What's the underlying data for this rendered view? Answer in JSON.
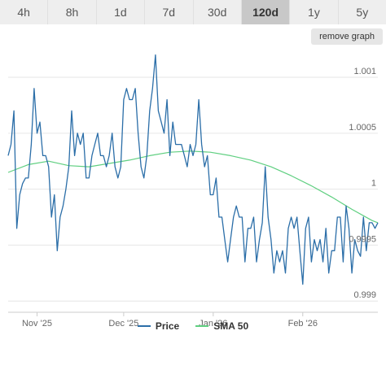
{
  "range_selector": {
    "buttons": [
      "4h",
      "8h",
      "1d",
      "7d",
      "30d",
      "120d",
      "1y",
      "5y"
    ],
    "active": "120d"
  },
  "remove_graph_label": "remove graph",
  "colors": {
    "price": "#2b6ea8",
    "sma": "#5fcf80",
    "grid": "#e6e6e6",
    "axis": "#cccccc"
  },
  "chart_data": {
    "type": "line",
    "title": "",
    "xlabel": "",
    "ylabel": "",
    "ylim": [
      0.9989,
      1.00124
    ],
    "y_ticks": [
      0.999,
      0.9995,
      1,
      1.0005,
      1.001
    ],
    "y_tick_labels": [
      "0.999",
      "0.9995",
      "1",
      "1.0005",
      "1.001"
    ],
    "x_range": [
      "2025-10-22",
      "2026-02-27"
    ],
    "x_ticks": [
      {
        "label": "Nov '25",
        "date": "2025-11-01"
      },
      {
        "label": "Dec '25",
        "date": "2025-12-01"
      },
      {
        "label": "Jan '26",
        "date": "2026-01-01"
      },
      {
        "label": "Feb '26",
        "date": "2026-02-01"
      }
    ],
    "grid": true,
    "legend_position": "bottom",
    "series": [
      {
        "name": "Price",
        "x": [
          "2025-10-22",
          "2025-10-23",
          "2025-10-24",
          "2025-10-25",
          "2025-10-26",
          "2025-10-27",
          "2025-10-28",
          "2025-10-29",
          "2025-10-30",
          "2025-10-31",
          "2025-11-01",
          "2025-11-02",
          "2025-11-03",
          "2025-11-04",
          "2025-11-05",
          "2025-11-06",
          "2025-11-07",
          "2025-11-08",
          "2025-11-09",
          "2025-11-10",
          "2025-11-11",
          "2025-11-12",
          "2025-11-13",
          "2025-11-14",
          "2025-11-15",
          "2025-11-16",
          "2025-11-17",
          "2025-11-18",
          "2025-11-19",
          "2025-11-20",
          "2025-11-21",
          "2025-11-22",
          "2025-11-23",
          "2025-11-24",
          "2025-11-25",
          "2025-11-26",
          "2025-11-27",
          "2025-11-28",
          "2025-11-29",
          "2025-11-30",
          "2025-12-01",
          "2025-12-02",
          "2025-12-03",
          "2025-12-04",
          "2025-12-05",
          "2025-12-06",
          "2025-12-07",
          "2025-12-08",
          "2025-12-09",
          "2025-12-10",
          "2025-12-11",
          "2025-12-12",
          "2025-12-13",
          "2025-12-14",
          "2025-12-15",
          "2025-12-16",
          "2025-12-17",
          "2025-12-18",
          "2025-12-19",
          "2025-12-20",
          "2025-12-21",
          "2025-12-22",
          "2025-12-23",
          "2025-12-24",
          "2025-12-25",
          "2025-12-26",
          "2025-12-27",
          "2025-12-28",
          "2025-12-29",
          "2025-12-30",
          "2025-12-31",
          "2026-01-01",
          "2026-01-02",
          "2026-01-03",
          "2026-01-04",
          "2026-01-05",
          "2026-01-06",
          "2026-01-07",
          "2026-01-08",
          "2026-01-09",
          "2026-01-10",
          "2026-01-11",
          "2026-01-12",
          "2026-01-13",
          "2026-01-14",
          "2026-01-15",
          "2026-01-16",
          "2026-01-17",
          "2026-01-18",
          "2026-01-19",
          "2026-01-20",
          "2026-01-21",
          "2026-01-22",
          "2026-01-23",
          "2026-01-24",
          "2026-01-25",
          "2026-01-26",
          "2026-01-27",
          "2026-01-28",
          "2026-01-29",
          "2026-01-30",
          "2026-01-31",
          "2026-02-01",
          "2026-02-02",
          "2026-02-03",
          "2026-02-04",
          "2026-02-05",
          "2026-02-06",
          "2026-02-07",
          "2026-02-08",
          "2026-02-09",
          "2026-02-10",
          "2026-02-11",
          "2026-02-12",
          "2026-02-13",
          "2026-02-14",
          "2026-02-15",
          "2026-02-16",
          "2026-02-17",
          "2026-02-18",
          "2026-02-19",
          "2026-02-20",
          "2026-02-21",
          "2026-02-22",
          "2026-02-23",
          "2026-02-24",
          "2026-02-25",
          "2026-02-26",
          "2026-02-27"
        ],
        "values": [
          1.0003,
          1.0004,
          1.0007,
          0.99965,
          0.99995,
          1.00005,
          1.0001,
          1.0001,
          1.0004,
          1.0009,
          1.0005,
          1.0006,
          1.0003,
          1.0003,
          1.0002,
          0.99975,
          0.99995,
          0.99945,
          0.99975,
          0.99985,
          1.0,
          1.0002,
          1.0007,
          1.0003,
          1.0005,
          1.0004,
          1.0005,
          1.0001,
          1.0001,
          1.0003,
          1.0004,
          1.0005,
          1.0003,
          1.0003,
          1.0002,
          1.0003,
          1.0005,
          1.0002,
          1.0001,
          1.0002,
          1.0008,
          1.0009,
          1.0008,
          1.0008,
          1.0009,
          1.0005,
          1.0002,
          1.0001,
          1.0003,
          1.0007,
          1.0009,
          1.0012,
          1.0007,
          1.0006,
          1.0005,
          1.0008,
          1.0003,
          1.0006,
          1.0004,
          1.0004,
          1.0004,
          1.0003,
          1.0002,
          1.0004,
          1.0003,
          1.0004,
          1.0008,
          1.0004,
          1.0002,
          1.0003,
          0.99995,
          0.99995,
          1.0001,
          0.99975,
          0.99975,
          0.99955,
          0.99935,
          0.99955,
          0.99975,
          0.99985,
          0.99975,
          0.99975,
          0.99935,
          0.99965,
          0.99965,
          0.99975,
          0.99935,
          0.99955,
          0.9997,
          1.0002,
          0.99975,
          0.99955,
          0.99925,
          0.99945,
          0.99935,
          0.99945,
          0.99925,
          0.99965,
          0.99975,
          0.99965,
          0.99975,
          0.99945,
          0.99915,
          0.99965,
          0.99975,
          0.99935,
          0.99955,
          0.99945,
          0.99955,
          0.99935,
          0.99965,
          0.99925,
          0.99945,
          0.99945,
          0.99975,
          0.99975,
          0.99935,
          0.99985,
          0.99965,
          0.99925,
          0.99955,
          0.99945,
          0.9994,
          0.99975,
          0.99945,
          0.9997,
          0.9997,
          0.99965,
          0.9997
        ],
        "color": "#2b6ea8"
      },
      {
        "name": "SMA 50",
        "x": [
          "2025-10-22",
          "2025-10-29",
          "2025-11-05",
          "2025-11-12",
          "2025-11-19",
          "2025-11-26",
          "2025-12-03",
          "2025-12-10",
          "2025-12-17",
          "2025-12-24",
          "2025-12-31",
          "2026-01-07",
          "2026-01-14",
          "2026-01-21",
          "2026-01-28",
          "2026-02-04",
          "2026-02-11",
          "2026-02-18",
          "2026-02-25",
          "2026-02-27"
        ],
        "values": [
          1.00015,
          1.00022,
          1.00025,
          1.00021,
          1.0002,
          1.00023,
          1.00026,
          1.0003,
          1.00033,
          1.00034,
          1.00033,
          1.0003,
          1.00026,
          1.0002,
          1.00012,
          1.00003,
          0.99993,
          0.99982,
          0.99972,
          0.9997
        ],
        "color": "#5fcf80"
      }
    ]
  }
}
